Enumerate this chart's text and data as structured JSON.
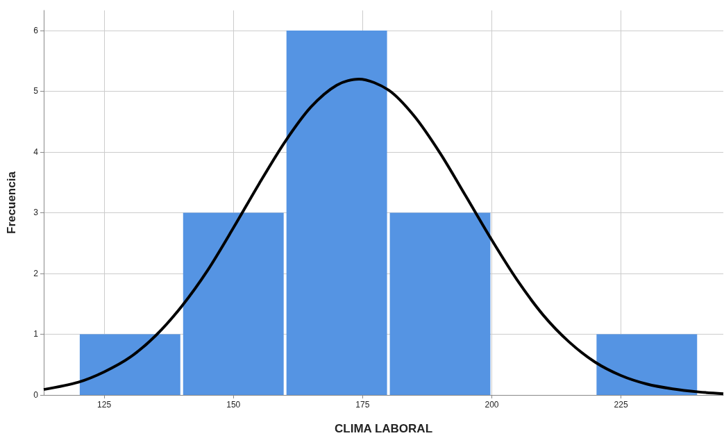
{
  "chart_data": {
    "type": "histogram",
    "xlabel": "CLIMA LABORAL",
    "ylabel": "Frecuencia",
    "bins": [
      120,
      140,
      160,
      180,
      200,
      220,
      240
    ],
    "values": [
      1,
      3,
      6,
      3,
      0,
      1
    ],
    "color": "#5594e3",
    "xlim": [
      113.3,
      244.8
    ],
    "xticks": [
      125,
      150,
      175,
      200,
      225
    ],
    "ylim": [
      0,
      6.33
    ],
    "yticks": [
      0,
      1,
      2,
      3,
      4,
      5,
      6
    ],
    "grid": true,
    "marker": "none",
    "line_style": "solid",
    "series": [
      {
        "type": "line",
        "color": "#000000",
        "x": [
          113.3,
          120,
          125,
          130,
          135,
          140,
          145,
          150,
          155,
          160,
          165,
          170,
          174.3,
          180,
          185,
          190,
          195,
          200,
          205,
          210,
          215,
          220,
          225,
          230,
          235,
          240,
          244.8
        ],
        "values": [
          0.09,
          0.21,
          0.38,
          0.62,
          0.98,
          1.46,
          2.05,
          2.75,
          3.48,
          4.17,
          4.74,
          5.1,
          5.2,
          5.02,
          4.59,
          3.98,
          3.27,
          2.55,
          1.88,
          1.31,
          0.87,
          0.54,
          0.32,
          0.18,
          0.1,
          0.05,
          0.02
        ]
      }
    ]
  }
}
